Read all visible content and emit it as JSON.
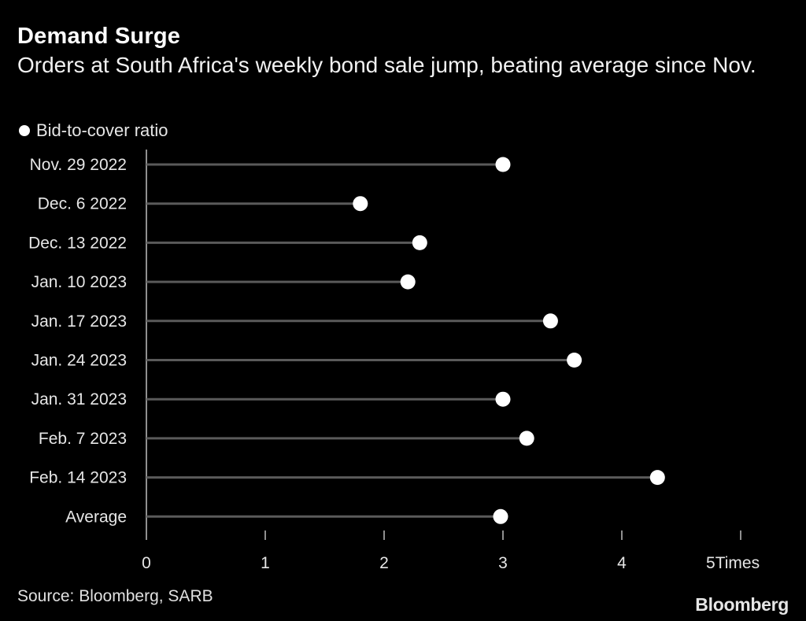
{
  "chart_data": {
    "type": "lollipop",
    "title": "Demand Surge",
    "subtitle": "Orders at South Africa's weekly bond sale jump, beating average since Nov.",
    "legend": [
      {
        "label": "Bid-to-cover ratio",
        "color": "#ffffff",
        "marker": "circle"
      }
    ],
    "categories": [
      "Nov. 29 2022",
      "Dec. 6 2022",
      "Dec. 13 2022",
      "Jan. 10 2023",
      "Jan. 17 2023",
      "Jan. 24 2023",
      "Jan. 31 2023",
      "Feb. 7 2023",
      "Feb. 14 2023",
      "Average"
    ],
    "series": [
      {
        "name": "Bid-to-cover ratio",
        "values": [
          3.0,
          1.8,
          2.3,
          2.2,
          3.4,
          3.6,
          3.0,
          3.2,
          4.3,
          2.98
        ]
      }
    ],
    "xlim": [
      0,
      5
    ],
    "xticks": [
      "0",
      "1",
      "2",
      "3",
      "4",
      "5"
    ],
    "x_unit_label": "Times",
    "colors": {
      "background": "#000000",
      "stem": "#5a5a5a",
      "dot": "#ffffff",
      "axis": "#bfbfbf"
    }
  },
  "footer": {
    "source": "Source: Bloomberg, SARB",
    "brand": "Bloomberg"
  }
}
